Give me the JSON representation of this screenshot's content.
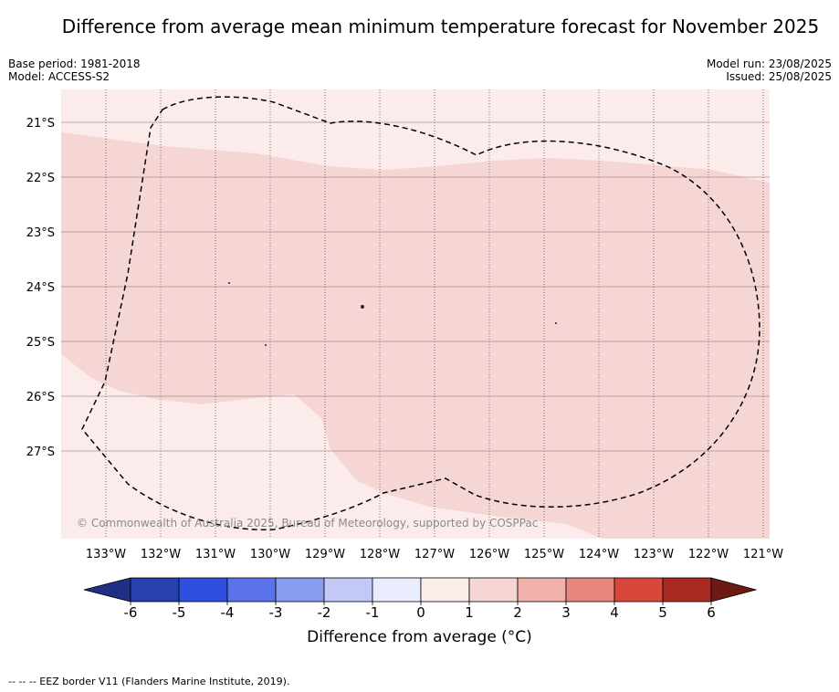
{
  "title": "Difference from average mean minimum temperature forecast for November 2025",
  "meta": {
    "base_period": "Base period: 1981-2018",
    "model": "Model: ACCESS-S2",
    "model_run": "Model run: 23/08/2025",
    "issued": "Issued: 25/08/2025"
  },
  "copyright": "© Commonwealth of Australia 2025, Bureau of Meteorology, supported by COSPPac",
  "map": {
    "lat_labels": [
      "21°S",
      "22°S",
      "23°S",
      "24°S",
      "25°S",
      "26°S",
      "27°S"
    ],
    "lon_labels": [
      "133°W",
      "132°W",
      "131°W",
      "130°W",
      "129°W",
      "128°W",
      "127°W",
      "126°W",
      "125°W",
      "124°W",
      "123°W",
      "122°W",
      "121°W"
    ],
    "anomaly_classes": {
      "0 to 1": "#fbeceb",
      "1 to 2": "#f5d6d4"
    }
  },
  "colorbar": {
    "label": "Difference from average (°C)",
    "ticks": [
      "-6",
      "-5",
      "-4",
      "-3",
      "-2",
      "-1",
      "0",
      "1",
      "2",
      "3",
      "4",
      "5",
      "6"
    ],
    "colors": [
      "#1f2f86",
      "#2740b0",
      "#2f4fe0",
      "#5a73ea",
      "#8a9cef",
      "#c2c9f6",
      "#e9ecfc",
      "#fcecea",
      "#f5d6d4",
      "#efb1aa",
      "#e8857c",
      "#d9473c",
      "#a82a20",
      "#6b1a14"
    ]
  },
  "footnote": "--  --  -- EEZ border V11 (Flanders Marine Institute, 2019)."
}
